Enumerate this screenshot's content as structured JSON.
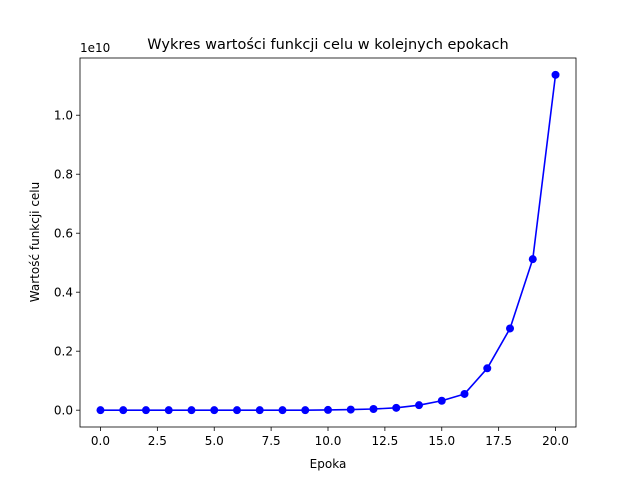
{
  "chart_data": {
    "type": "line",
    "title": "Wykres wartości funkcji celu w kolejnych epokach",
    "xlabel": "Epoka",
    "ylabel": "Wartość funkcji celu",
    "offset_label": "1e10",
    "xlim": [
      -0.9,
      20.9
    ],
    "ylim": [
      -0.057,
      1.194
    ],
    "x_ticks": [
      0.0,
      2.5,
      5.0,
      7.5,
      10.0,
      12.5,
      15.0,
      17.5,
      20.0
    ],
    "x_tick_labels": [
      "0.0",
      "2.5",
      "5.0",
      "7.5",
      "10.0",
      "12.5",
      "15.0",
      "17.5",
      "20.0"
    ],
    "y_ticks": [
      0.0,
      0.2,
      0.4,
      0.6,
      0.8,
      1.0
    ],
    "y_tick_labels": [
      "0.0",
      "0.2",
      "0.4",
      "0.6",
      "0.8",
      "1.0"
    ],
    "grid": false,
    "series": [
      {
        "color": "#0000ff",
        "marker": "circle",
        "x": [
          0,
          1,
          2,
          3,
          4,
          5,
          6,
          7,
          8,
          9,
          10,
          11,
          12,
          13,
          14,
          15,
          16,
          17,
          18,
          19,
          20
        ],
        "y": [
          0.0,
          0.0,
          0.0,
          0.0,
          0.0,
          0.0,
          0.0,
          0.0,
          0.0,
          0.0,
          0.001,
          0.002,
          0.004,
          0.008,
          0.017,
          0.032,
          0.055,
          0.142,
          0.277,
          0.512,
          1.137
        ]
      }
    ]
  }
}
